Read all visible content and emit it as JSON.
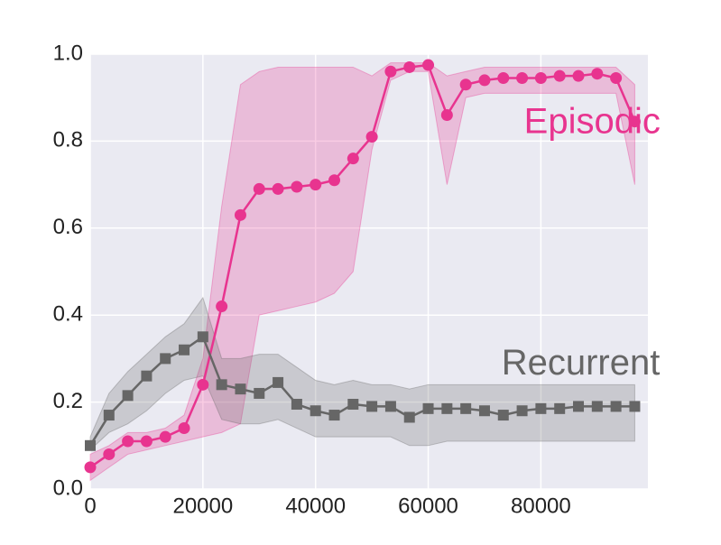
{
  "chart_data": {
    "type": "line",
    "x": [
      0,
      3333,
      6667,
      10000,
      13333,
      16667,
      20000,
      23333,
      26667,
      30000,
      33333,
      36667,
      40000,
      43333,
      46667,
      50000,
      53333,
      56667,
      60000,
      63333,
      66667,
      70000,
      73333,
      76667,
      80000,
      83333,
      86667,
      90000,
      93333,
      96667
    ],
    "series": [
      {
        "name": "Episodic",
        "color": "#e8348f",
        "marker": "circle",
        "values": [
          0.05,
          0.08,
          0.11,
          0.11,
          0.12,
          0.14,
          0.24,
          0.42,
          0.63,
          0.69,
          0.69,
          0.695,
          0.7,
          0.71,
          0.76,
          0.81,
          0.96,
          0.97,
          0.975,
          0.86,
          0.93,
          0.94,
          0.945,
          0.945,
          0.945,
          0.95,
          0.95,
          0.955,
          0.945,
          0.845
        ],
        "lower": [
          0.02,
          0.05,
          0.08,
          0.09,
          0.1,
          0.11,
          0.12,
          0.13,
          0.15,
          0.4,
          0.41,
          0.42,
          0.43,
          0.45,
          0.5,
          0.78,
          0.94,
          0.96,
          0.96,
          0.7,
          0.9,
          0.91,
          0.91,
          0.91,
          0.91,
          0.91,
          0.91,
          0.91,
          0.91,
          0.7
        ],
        "upper": [
          0.08,
          0.1,
          0.13,
          0.13,
          0.14,
          0.17,
          0.3,
          0.65,
          0.93,
          0.96,
          0.97,
          0.97,
          0.97,
          0.97,
          0.97,
          0.95,
          0.98,
          0.98,
          0.98,
          0.95,
          0.96,
          0.97,
          0.97,
          0.97,
          0.97,
          0.97,
          0.97,
          0.97,
          0.97,
          0.93
        ]
      },
      {
        "name": "Recurrent",
        "color": "#666666",
        "marker": "square",
        "values": [
          0.1,
          0.17,
          0.215,
          0.26,
          0.3,
          0.32,
          0.35,
          0.24,
          0.23,
          0.22,
          0.245,
          0.195,
          0.18,
          0.17,
          0.195,
          0.19,
          0.19,
          0.165,
          0.185,
          0.185,
          0.185,
          0.18,
          0.17,
          0.18,
          0.185,
          0.185,
          0.19,
          0.19,
          0.19,
          0.19
        ],
        "lower": [
          0.09,
          0.13,
          0.15,
          0.18,
          0.22,
          0.25,
          0.26,
          0.16,
          0.15,
          0.15,
          0.16,
          0.14,
          0.12,
          0.12,
          0.12,
          0.12,
          0.12,
          0.1,
          0.1,
          0.11,
          0.11,
          0.11,
          0.11,
          0.11,
          0.11,
          0.11,
          0.11,
          0.11,
          0.11,
          0.11
        ],
        "upper": [
          0.12,
          0.22,
          0.27,
          0.31,
          0.35,
          0.38,
          0.44,
          0.3,
          0.3,
          0.31,
          0.31,
          0.28,
          0.25,
          0.24,
          0.25,
          0.24,
          0.24,
          0.23,
          0.24,
          0.24,
          0.24,
          0.24,
          0.24,
          0.24,
          0.24,
          0.24,
          0.24,
          0.24,
          0.24,
          0.24
        ]
      }
    ],
    "annotations": [
      {
        "text": "Episodic",
        "x": 77000,
        "y": 0.84,
        "color": "#e8348f"
      },
      {
        "text": "Recurrent",
        "x": 73000,
        "y": 0.285,
        "color": "#666666"
      }
    ],
    "xlim": [
      0,
      99000
    ],
    "ylim": [
      0,
      1
    ],
    "xticks": [
      0,
      20000,
      40000,
      60000,
      80000
    ],
    "yticks": [
      {
        "value": 0,
        "label": "0.0"
      },
      0.2,
      0.4,
      0.6,
      0.8,
      {
        "value": 1,
        "label": "1.0"
      }
    ],
    "grid": true
  }
}
